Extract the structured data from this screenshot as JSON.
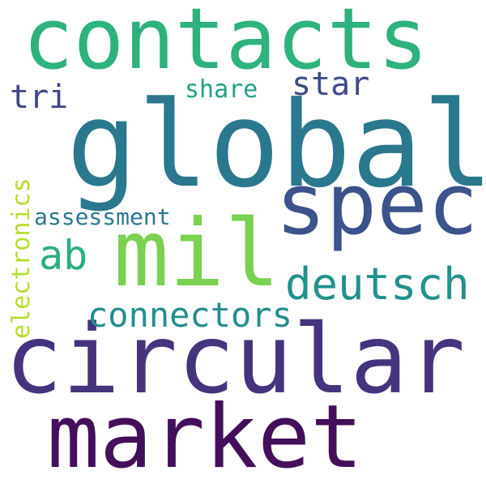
{
  "word_cloud": {
    "background_color": "#ffffff",
    "words": [
      {
        "text": "contacts",
        "color": "#2db27d",
        "orientation": "horizontal"
      },
      {
        "text": "global",
        "color": "#2a788e",
        "orientation": "horizontal"
      },
      {
        "text": "spec",
        "color": "#3b528b",
        "orientation": "horizontal"
      },
      {
        "text": "mil",
        "color": "#7ad151",
        "orientation": "horizontal"
      },
      {
        "text": "circular",
        "color": "#46337e",
        "orientation": "horizontal"
      },
      {
        "text": "market",
        "color": "#440f5a",
        "orientation": "horizontal"
      },
      {
        "text": "deutsch",
        "color": "#21918c",
        "orientation": "horizontal"
      },
      {
        "text": "connectors",
        "color": "#218e8d",
        "orientation": "horizontal"
      },
      {
        "text": "ab",
        "color": "#29af7f",
        "orientation": "horizontal"
      },
      {
        "text": "tri",
        "color": "#404688",
        "orientation": "horizontal"
      },
      {
        "text": "star",
        "color": "#3e4a89",
        "orientation": "horizontal"
      },
      {
        "text": "share",
        "color": "#1fa088",
        "orientation": "horizontal"
      },
      {
        "text": "assessment",
        "color": "#2a788e",
        "orientation": "horizontal"
      },
      {
        "text": "electronics",
        "color": "#b5de2b",
        "orientation": "vertical"
      }
    ]
  }
}
